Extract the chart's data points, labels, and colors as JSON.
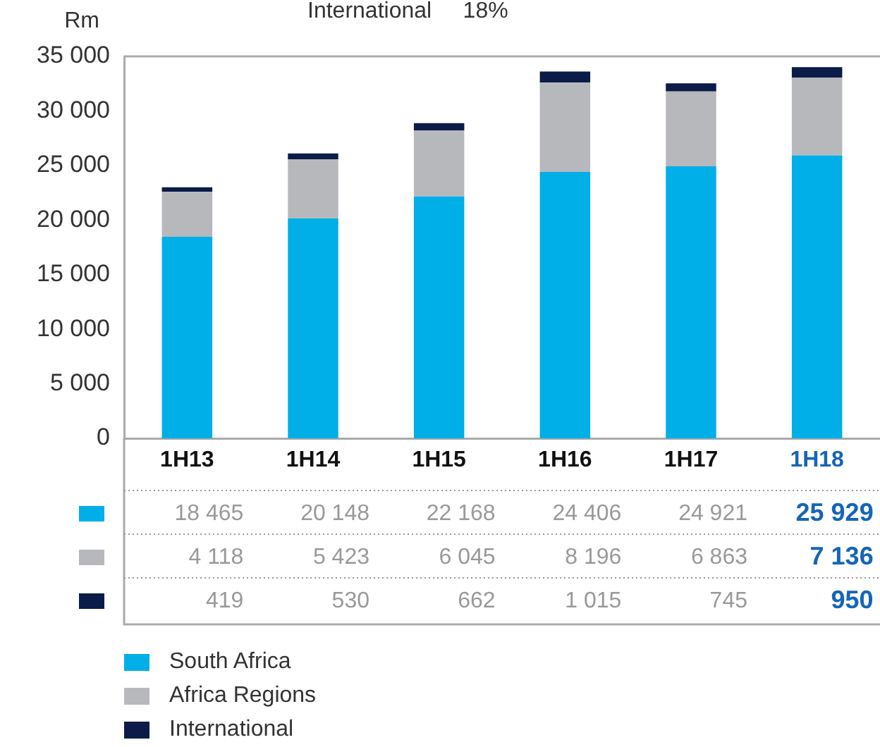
{
  "chart_data": {
    "type": "bar",
    "stacked": true,
    "ylabel": "Rm",
    "annotations": [
      "International     18%"
    ],
    "categories": [
      "1H13",
      "1H14",
      "1H15",
      "1H16",
      "1H17",
      "1H18"
    ],
    "ylim": [
      0,
      35000
    ],
    "yticks": [
      0,
      {
        "value": 5000,
        "label": "5 000"
      },
      {
        "value": 10000,
        "label": "10 000"
      },
      {
        "value": 15000,
        "label": "15 000"
      },
      {
        "value": 20000,
        "label": "20 000"
      },
      {
        "value": 25000,
        "label": "25 000"
      },
      {
        "value": 30000,
        "label": "30 000"
      },
      {
        "value": 35000,
        "label": "35 000"
      }
    ],
    "grid": false,
    "legend": "bottom left",
    "series": [
      {
        "name": "South Africa",
        "color": "#00aee8",
        "values": [
          18465,
          20148,
          22168,
          24406,
          24921,
          25929
        ],
        "value_labels": [
          "18 465",
          "20 148",
          "22 168",
          "24 406",
          "24 921",
          "25 929"
        ]
      },
      {
        "name": "Africa Regions",
        "color": "#b7b8bc",
        "values": [
          4118,
          5423,
          6045,
          8196,
          6863,
          7136
        ],
        "value_labels": [
          "4 118",
          "5 423",
          "6 045",
          "8 196",
          "6 863",
          "7 136"
        ]
      },
      {
        "name": "International",
        "color": "#0b1c48",
        "values": [
          419,
          530,
          662,
          1015,
          745,
          950
        ],
        "value_labels": [
          "419",
          "530",
          "662",
          "1 015",
          "745",
          "950"
        ]
      }
    ]
  }
}
